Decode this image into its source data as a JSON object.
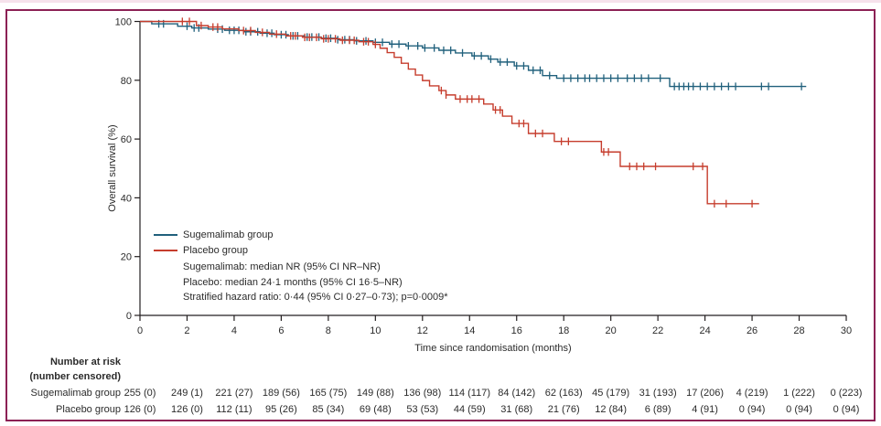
{
  "frame": {
    "border_color": "#8c2155",
    "outer_edge_color": "#f6e2ec",
    "background": "#ffffff"
  },
  "chart_data": {
    "type": "line",
    "subtype": "kaplan-meier-step",
    "title": "",
    "xlabel": "Time since randomisation (months)",
    "ylabel": "Overall survival (%)",
    "xlim": [
      0,
      30
    ],
    "ylim": [
      0,
      100
    ],
    "xticks": [
      0,
      2,
      4,
      6,
      8,
      10,
      12,
      14,
      16,
      18,
      20,
      22,
      24,
      26,
      28,
      30
    ],
    "yticks": [
      0,
      20,
      40,
      60,
      80,
      100
    ],
    "grid": false,
    "legend_position": "inside-lower-left",
    "axis_color": "#231f20",
    "series": [
      {
        "name": "Sugemalimab group",
        "color": "#20607c",
        "steps": [
          [
            0,
            100
          ],
          [
            0.5,
            99.2
          ],
          [
            1.6,
            98.4
          ],
          [
            2.2,
            97.8
          ],
          [
            2.9,
            97.4
          ],
          [
            3.6,
            97.0
          ],
          [
            4.4,
            96.5
          ],
          [
            5.1,
            96.0
          ],
          [
            5.7,
            95.5
          ],
          [
            6.3,
            95.1
          ],
          [
            7.0,
            94.7
          ],
          [
            7.7,
            94.3
          ],
          [
            8.4,
            93.8
          ],
          [
            9.1,
            93.4
          ],
          [
            9.9,
            92.9
          ],
          [
            10.6,
            92.3
          ],
          [
            11.3,
            91.7
          ],
          [
            12.0,
            91.0
          ],
          [
            12.7,
            90.2
          ],
          [
            13.4,
            89.3
          ],
          [
            14.1,
            88.3
          ],
          [
            14.8,
            87.2
          ],
          [
            15.2,
            86.2
          ],
          [
            15.9,
            84.9
          ],
          [
            16.5,
            83.4
          ],
          [
            17.1,
            81.6
          ],
          [
            17.7,
            80.7
          ],
          [
            22.5,
            77.9
          ]
        ],
        "end_month": 28.3,
        "censor_months": [
          0.8,
          1.0,
          2.0,
          2.3,
          2.5,
          3.3,
          3.5,
          3.8,
          4.0,
          4.2,
          4.5,
          4.7,
          5.0,
          5.4,
          5.6,
          6.0,
          6.2,
          6.5,
          6.7,
          7.1,
          7.3,
          7.6,
          7.9,
          8.1,
          8.4,
          8.7,
          8.9,
          9.2,
          9.6,
          10.0,
          10.3,
          10.7,
          11.0,
          11.4,
          11.8,
          12.1,
          12.5,
          12.9,
          13.2,
          13.7,
          14.2,
          14.5,
          14.9,
          15.3,
          15.6,
          16.0,
          16.3,
          16.7,
          17.0,
          17.4,
          18.0,
          18.3,
          18.6,
          18.9,
          19.1,
          19.4,
          19.7,
          20.0,
          20.3,
          20.7,
          21.0,
          21.3,
          21.6,
          22.1,
          22.7,
          22.9,
          23.1,
          23.3,
          23.5,
          23.8,
          24.1,
          24.4,
          24.7,
          25.0,
          25.3,
          26.4,
          26.7,
          28.1
        ]
      },
      {
        "name": "Placebo group",
        "color": "#c63d2d",
        "steps": [
          [
            0,
            100
          ],
          [
            2.4,
            98.6
          ],
          [
            2.9,
            98.1
          ],
          [
            3.5,
            97.5
          ],
          [
            4.2,
            96.9
          ],
          [
            4.9,
            96.3
          ],
          [
            5.5,
            95.7
          ],
          [
            6.2,
            95.1
          ],
          [
            6.9,
            94.6
          ],
          [
            7.7,
            94.1
          ],
          [
            8.5,
            93.6
          ],
          [
            9.3,
            93.1
          ],
          [
            9.9,
            92.2
          ],
          [
            10.2,
            90.9
          ],
          [
            10.5,
            89.4
          ],
          [
            10.8,
            87.8
          ],
          [
            11.1,
            85.8
          ],
          [
            11.4,
            83.8
          ],
          [
            11.7,
            81.8
          ],
          [
            12.0,
            79.9
          ],
          [
            12.3,
            78.1
          ],
          [
            12.7,
            76.5
          ],
          [
            13.0,
            75.0
          ],
          [
            13.4,
            73.6
          ],
          [
            14.6,
            71.9
          ],
          [
            15.0,
            69.9
          ],
          [
            15.4,
            67.8
          ],
          [
            15.8,
            65.3
          ],
          [
            16.5,
            61.9
          ],
          [
            17.6,
            59.2
          ],
          [
            19.6,
            55.6
          ],
          [
            20.4,
            50.7
          ],
          [
            24.1,
            38.0
          ]
        ],
        "end_month": 26.3,
        "censor_months": [
          1.8,
          2.1,
          2.6,
          3.1,
          3.3,
          4.4,
          4.7,
          5.2,
          5.8,
          6.4,
          6.6,
          7.0,
          7.2,
          7.5,
          7.8,
          8.0,
          8.3,
          8.6,
          8.9,
          9.1,
          9.5,
          9.7,
          10.0,
          12.8,
          13.0,
          13.6,
          13.9,
          14.1,
          14.4,
          15.1,
          15.3,
          16.1,
          16.3,
          16.8,
          17.1,
          17.9,
          18.2,
          19.7,
          19.9,
          20.8,
          21.1,
          21.4,
          21.9,
          23.5,
          23.9,
          24.4,
          24.9,
          26.0
        ]
      }
    ],
    "annotations": [
      "Sugemalimab: median NR (95% CI NR–NR)",
      "Placebo: median 24·1 months (95% CI 16·5–NR)",
      "Stratified hazard ratio: 0·44 (95% CI 0·27–0·73); p=0·0009*"
    ]
  },
  "risk_table": {
    "header_line1": "Number at risk",
    "header_line2": "(number censored)",
    "columns_months": [
      0,
      2,
      4,
      6,
      8,
      10,
      12,
      14,
      16,
      18,
      20,
      22,
      24,
      26,
      28,
      30
    ],
    "rows": [
      {
        "label": "Sugemalimab group",
        "values": [
          "255 (0)",
          "249 (1)",
          "221 (27)",
          "189 (56)",
          "165 (75)",
          "149 (88)",
          "136 (98)",
          "114 (117)",
          "84 (142)",
          "62 (163)",
          "45 (179)",
          "31 (193)",
          "17 (206)",
          "4 (219)",
          "1 (222)",
          "0 (223)"
        ]
      },
      {
        "label": "Placebo group",
        "values": [
          "126 (0)",
          "126 (0)",
          "112 (11)",
          "95 (26)",
          "85 (34)",
          "69 (48)",
          "53 (53)",
          "44 (59)",
          "31 (68)",
          "21 (76)",
          "12 (84)",
          "6 (89)",
          "4 (91)",
          "0 (94)",
          "0 (94)",
          "0 (94)"
        ]
      }
    ]
  }
}
